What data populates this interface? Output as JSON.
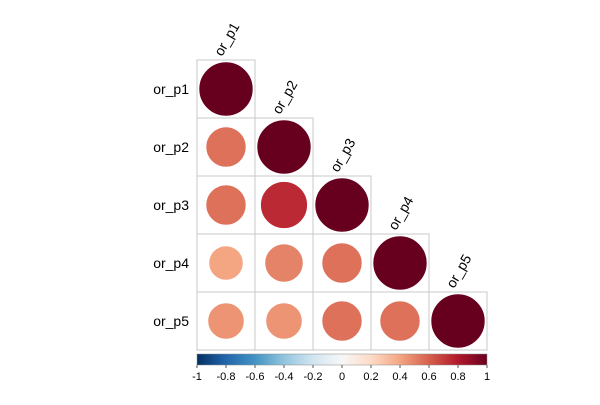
{
  "chart_data": {
    "type": "heatmap",
    "subtype": "correlogram-circle",
    "layout": "lower-triangle",
    "variables": [
      "or_p1",
      "or_p2",
      "or_p3",
      "or_p4",
      "or_p5"
    ],
    "matrix": [
      [
        1.0,
        0.55,
        0.55,
        0.4,
        0.45
      ],
      [
        0.55,
        1.0,
        0.75,
        0.5,
        0.45
      ],
      [
        0.55,
        0.75,
        1.0,
        0.55,
        0.55
      ],
      [
        0.4,
        0.5,
        0.55,
        1.0,
        0.55
      ],
      [
        0.45,
        0.45,
        0.55,
        0.55,
        1.0
      ]
    ],
    "colorbar": {
      "range": [
        -1,
        1
      ],
      "tick_labels": [
        "-1",
        "-0.8",
        "-0.6",
        "-0.4",
        "-0.2",
        "0",
        "0.2",
        "0.4",
        "0.6",
        "0.8",
        "1"
      ],
      "placement": "bottom"
    },
    "colors": {
      "negative_end": "#053061",
      "zero": "#f7f7f7",
      "positive_end": "#67001f",
      "grid": "#c8c8c8"
    }
  }
}
